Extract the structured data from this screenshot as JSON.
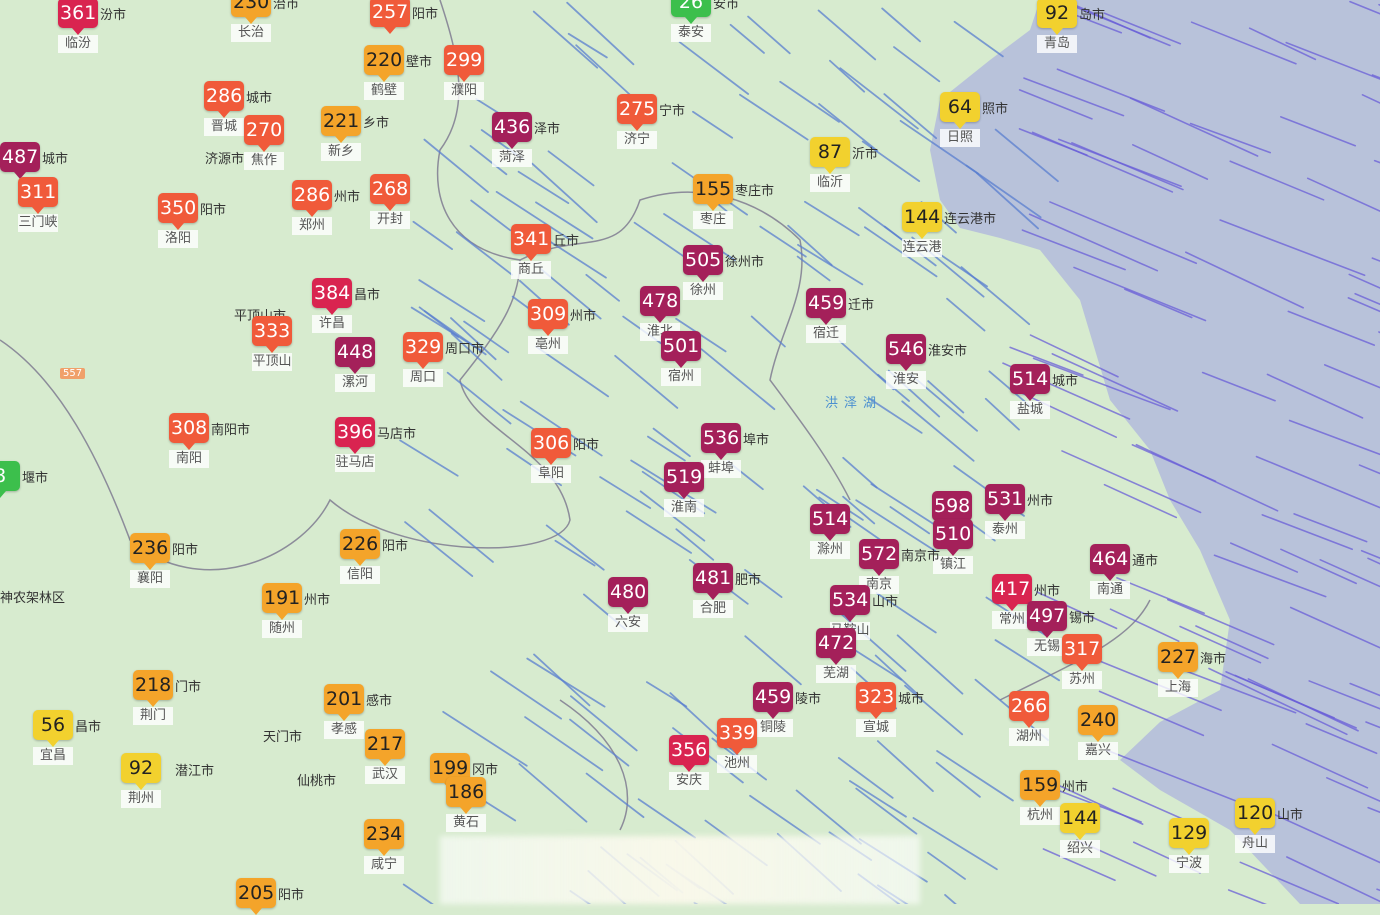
{
  "colors": {
    "good": "#3cbf4c",
    "moderate": "#f2d12e",
    "unhealthy_sensitive": "#f4a42a",
    "unhealthy": "#f05a3a",
    "very_unhealthy": "#d92450",
    "hazardous": "#a4205a",
    "land": "#d7ebcf",
    "sea": "#b8c2da",
    "wind": "#5a6fd6"
  },
  "markers": [
    {
      "value": "361",
      "city": "临汾",
      "suffix": "汾市"
    },
    {
      "value": "230",
      "city": "长治",
      "suffix": "治市"
    },
    {
      "value": "257",
      "city": "",
      "suffix": "阳市"
    },
    {
      "value": "220",
      "city": "鹤壁",
      "suffix": "壁市"
    },
    {
      "value": "299",
      "city": "濮阳",
      "suffix": ""
    },
    {
      "value": "286",
      "city": "晋城",
      "suffix": "城市"
    },
    {
      "value": "270",
      "city": "焦作",
      "suffix": ""
    },
    {
      "value": "221",
      "city": "新乡",
      "suffix": "乡市"
    },
    {
      "value": "487",
      "city": "",
      "suffix": "城市"
    },
    {
      "value": "311",
      "city": "三门峡",
      "suffix": ""
    },
    {
      "value": "350",
      "city": "洛阳",
      "suffix": "阳市"
    },
    {
      "value": "286",
      "city": "郑州",
      "suffix": "州市"
    },
    {
      "value": "268",
      "city": "开封",
      "suffix": ""
    },
    {
      "value": "436",
      "city": "菏泽",
      "suffix": "泽市"
    },
    {
      "value": "275",
      "city": "济宁",
      "suffix": "宁市"
    },
    {
      "value": "26",
      "city": "泰安",
      "suffix": "安市"
    },
    {
      "value": "92",
      "city": "青岛",
      "suffix": "岛市"
    },
    {
      "value": "64",
      "city": "日照",
      "suffix": "照市"
    },
    {
      "value": "87",
      "city": "临沂",
      "suffix": "沂市"
    },
    {
      "value": "155",
      "city": "枣庄",
      "suffix": "枣庄市"
    },
    {
      "value": "144",
      "city": "连云港",
      "suffix": "连云港市"
    },
    {
      "value": "341",
      "city": "商丘",
      "suffix": "丘市"
    },
    {
      "value": "505",
      "city": "徐州",
      "suffix": "徐州市"
    },
    {
      "value": "384",
      "city": "许昌",
      "suffix": "昌市"
    },
    {
      "value": "333",
      "city": "平顶山",
      "suffix": ""
    },
    {
      "value": "448",
      "city": "漯河",
      "suffix": ""
    },
    {
      "value": "329",
      "city": "周口",
      "suffix": "周口市"
    },
    {
      "value": "309",
      "city": "亳州",
      "suffix": "州市"
    },
    {
      "value": "478",
      "city": "淮北",
      "suffix": ""
    },
    {
      "value": "501",
      "city": "宿州",
      "suffix": ""
    },
    {
      "value": "459",
      "city": "宿迁",
      "suffix": "迁市"
    },
    {
      "value": "546",
      "city": "淮安",
      "suffix": "淮安市"
    },
    {
      "value": "514",
      "city": "盐城",
      "suffix": "城市"
    },
    {
      "value": "308",
      "city": "南阳",
      "suffix": "南阳市"
    },
    {
      "value": "396",
      "city": "驻马店",
      "suffix": "马店市"
    },
    {
      "value": "306",
      "city": "阜阳",
      "suffix": "阳市"
    },
    {
      "value": "536",
      "city": "蚌埠",
      "suffix": "埠市"
    },
    {
      "value": "519",
      "city": "淮南",
      "suffix": ""
    },
    {
      "value": "514",
      "city": "滁州",
      "suffix": ""
    },
    {
      "value": "598",
      "city": "",
      "suffix": ""
    },
    {
      "value": "510",
      "city": "镇江",
      "suffix": ""
    },
    {
      "value": "531",
      "city": "泰州",
      "suffix": "州市"
    },
    {
      "value": "572",
      "city": "南京",
      "suffix": "南京市"
    },
    {
      "value": "464",
      "city": "南通",
      "suffix": "通市"
    },
    {
      "value": "481",
      "city": "合肥",
      "suffix": "肥市"
    },
    {
      "value": "480",
      "city": "六安",
      "suffix": ""
    },
    {
      "value": "534",
      "city": "马鞍山",
      "suffix": "山市"
    },
    {
      "value": "417",
      "city": "常州",
      "suffix": "州市"
    },
    {
      "value": "497",
      "city": "无锡",
      "suffix": "锡市"
    },
    {
      "value": "317",
      "city": "苏州",
      "suffix": ""
    },
    {
      "value": "472",
      "city": "芜湖",
      "suffix": ""
    },
    {
      "value": "459",
      "city": "铜陵",
      "suffix": "陵市"
    },
    {
      "value": "323",
      "city": "宣城",
      "suffix": "城市"
    },
    {
      "value": "339",
      "city": "池州",
      "suffix": ""
    },
    {
      "value": "356",
      "city": "安庆",
      "suffix": ""
    },
    {
      "value": "266",
      "city": "湖州",
      "suffix": ""
    },
    {
      "value": "240",
      "city": "嘉兴",
      "suffix": ""
    },
    {
      "value": "227",
      "city": "上海",
      "suffix": "海市"
    },
    {
      "value": "159",
      "city": "杭州",
      "suffix": "州市"
    },
    {
      "value": "144",
      "city": "绍兴",
      "suffix": ""
    },
    {
      "value": "129",
      "city": "宁波",
      "suffix": ""
    },
    {
      "value": "120",
      "city": "舟山",
      "suffix": "山市"
    },
    {
      "value": "236",
      "city": "襄阳",
      "suffix": "阳市"
    },
    {
      "value": "226",
      "city": "信阳",
      "suffix": "阳市"
    },
    {
      "value": "191",
      "city": "随州",
      "suffix": "州市"
    },
    {
      "value": "218",
      "city": "荆门",
      "suffix": "门市"
    },
    {
      "value": "56",
      "city": "宜昌",
      "suffix": "昌市"
    },
    {
      "value": "92",
      "city": "荆州",
      "suffix": ""
    },
    {
      "value": "201",
      "city": "孝感",
      "suffix": "感市"
    },
    {
      "value": "217",
      "city": "武汉",
      "suffix": ""
    },
    {
      "value": "199",
      "city": "",
      "suffix": "冈市"
    },
    {
      "value": "186",
      "city": "黄石",
      "suffix": ""
    },
    {
      "value": "234",
      "city": "咸宁",
      "suffix": ""
    },
    {
      "value": "205",
      "city": "",
      "suffix": "阳市"
    },
    {
      "value": "8",
      "city": "",
      "suffix": "堰市"
    }
  ],
  "places": {
    "tianmen": "天门市",
    "qianjiang": "潜江市",
    "xiantao": "仙桃市",
    "shennongjia": "神农架林区",
    "hongze": "洪泽湖",
    "pingdingshan": "平顶山市",
    "jiyuan": "济源市",
    "road": "557"
  }
}
